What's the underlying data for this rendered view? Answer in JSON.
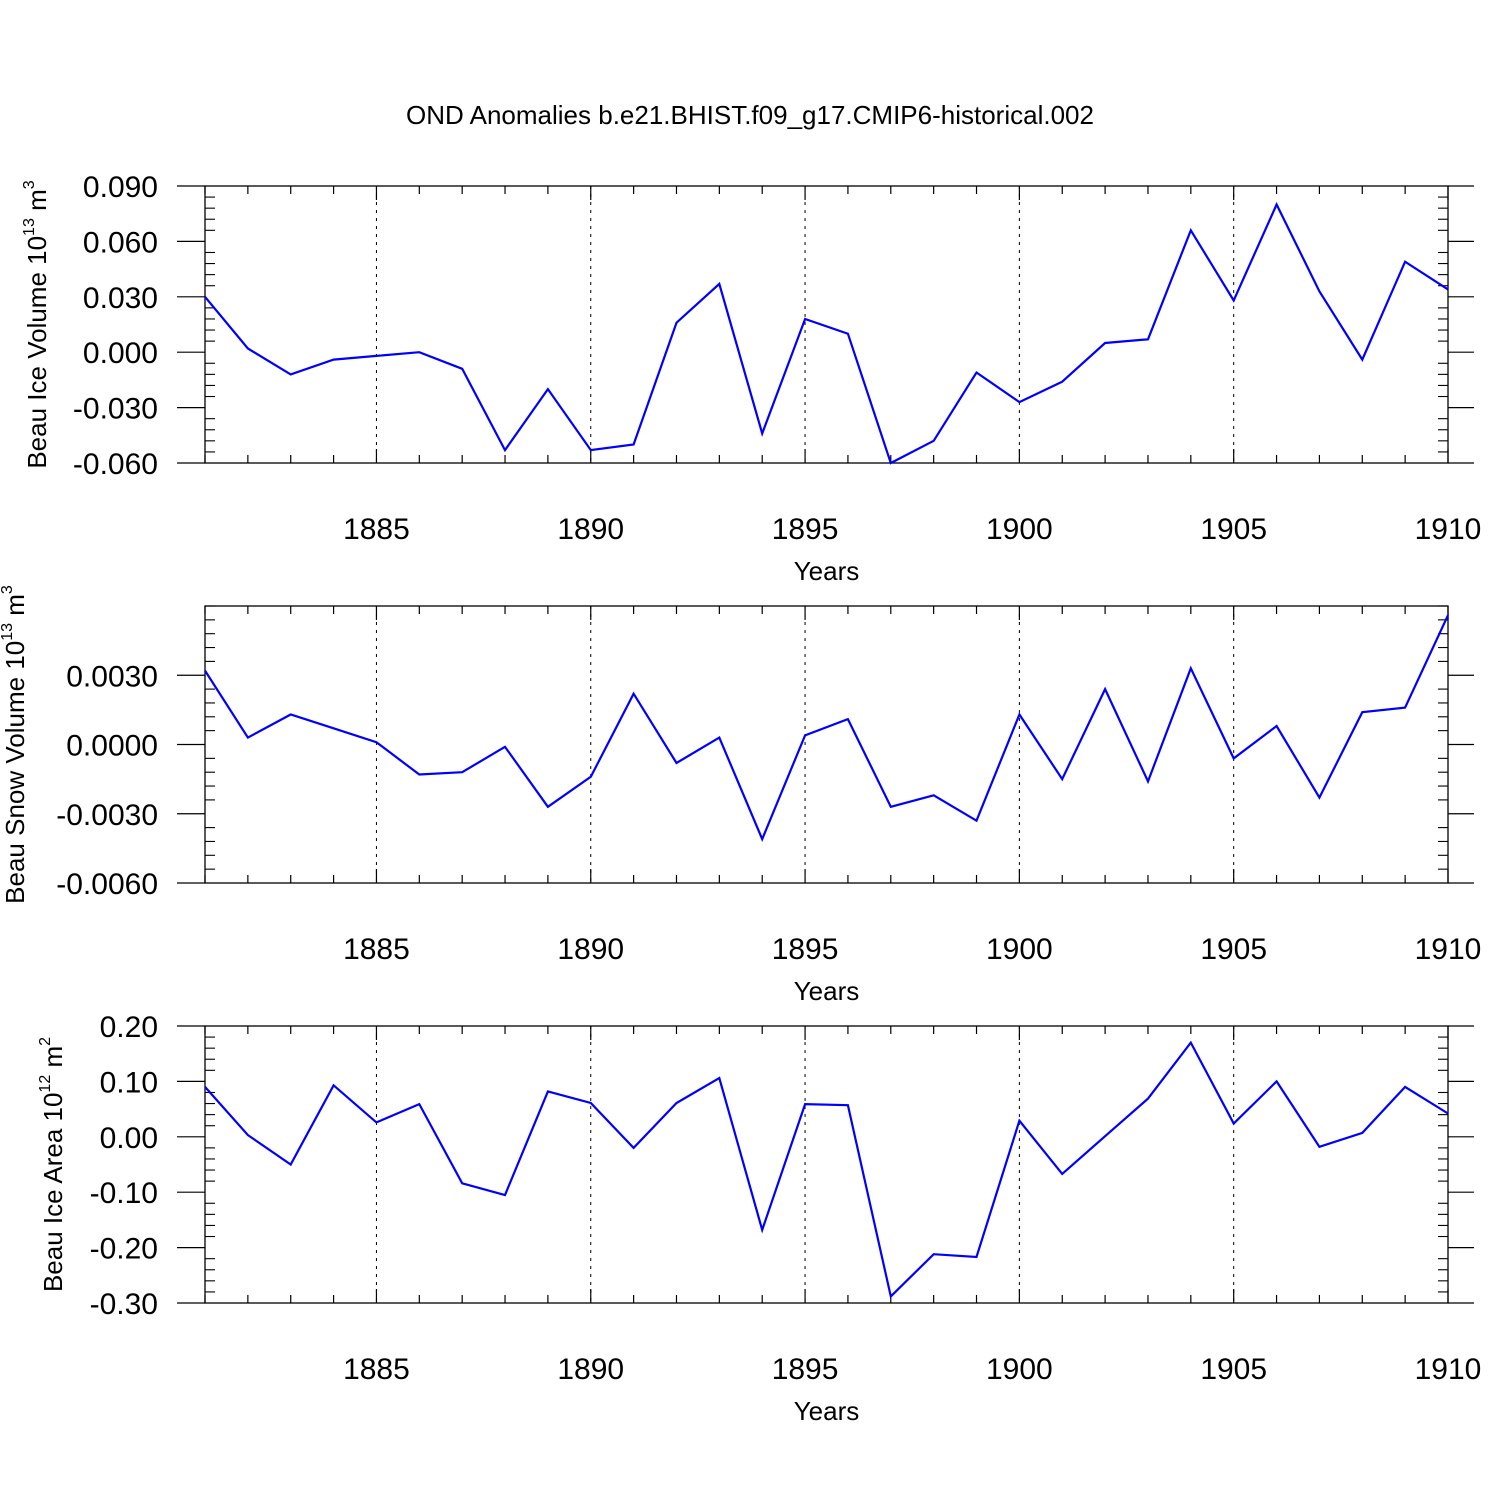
{
  "title": "OND Anomalies b.e21.BHIST.f09_g17.CMIP6-historical.002",
  "colors": {
    "line": "#0000ff",
    "axes": "#000000",
    "grid": "#000000"
  },
  "chart_data": [
    {
      "type": "line",
      "ylabel": {
        "text": "Beau Ice Volume 10",
        "sup": "13",
        "unit": " m",
        "unit_sup": "3"
      },
      "xlabel": "Years",
      "xlim": [
        1881,
        1910
      ],
      "ylim": [
        -0.06,
        0.09
      ],
      "yticks": [
        "0.090",
        "0.060",
        "0.030",
        "0.000",
        "-0.030",
        "-0.060"
      ],
      "ytick_values": [
        0.09,
        0.06,
        0.03,
        0.0,
        -0.03,
        -0.06
      ],
      "xticks": [
        "1885",
        "1890",
        "1895",
        "1900",
        "1905",
        "1910"
      ],
      "xtick_values": [
        1885,
        1890,
        1895,
        1900,
        1905,
        1910
      ],
      "grid": "dashed vertical at major x ticks",
      "series": [
        {
          "x": [
            1881,
            1882,
            1883,
            1884,
            1885,
            1886,
            1887,
            1888,
            1889,
            1890,
            1891,
            1892,
            1893,
            1894,
            1895,
            1896,
            1897,
            1898,
            1899,
            1900,
            1901,
            1902,
            1903,
            1904,
            1905,
            1906,
            1907,
            1908,
            1909,
            1910
          ],
          "values": [
            0.03,
            0.002,
            -0.012,
            -0.004,
            -0.002,
            0.0,
            -0.009,
            -0.053,
            -0.02,
            -0.053,
            -0.05,
            0.016,
            0.037,
            -0.044,
            0.018,
            0.01,
            -0.06,
            -0.048,
            -0.011,
            -0.027,
            -0.016,
            0.005,
            0.007,
            0.066,
            0.028,
            0.08,
            0.033,
            -0.004,
            0.049,
            0.034
          ]
        }
      ]
    },
    {
      "type": "line",
      "ylabel": {
        "text": "Beau Snow Volume 10",
        "sup": "13",
        "unit": " m",
        "unit_sup": "3"
      },
      "xlabel": "Years",
      "xlim": [
        1881,
        1910
      ],
      "ylim": [
        -0.006,
        0.006
      ],
      "yticks": [
        "0.0030",
        "0.0000",
        "-0.0030",
        "-0.0060"
      ],
      "ytick_values": [
        0.003,
        0.0,
        -0.003,
        -0.006
      ],
      "xticks": [
        "1885",
        "1890",
        "1895",
        "1900",
        "1905",
        "1910"
      ],
      "xtick_values": [
        1885,
        1890,
        1895,
        1900,
        1905,
        1910
      ],
      "grid": "dashed vertical at major x ticks",
      "series": [
        {
          "x": [
            1881,
            1882,
            1883,
            1884,
            1885,
            1886,
            1887,
            1888,
            1889,
            1890,
            1891,
            1892,
            1893,
            1894,
            1895,
            1896,
            1897,
            1898,
            1899,
            1900,
            1901,
            1902,
            1903,
            1904,
            1905,
            1906,
            1907,
            1908,
            1909,
            1910
          ],
          "values": [
            0.0032,
            0.0003,
            0.0013,
            0.0007,
            0.0001,
            -0.0013,
            -0.0012,
            -0.0001,
            -0.0027,
            -0.0014,
            0.0022,
            -0.0008,
            0.0003,
            -0.0041,
            0.0004,
            0.0011,
            -0.0027,
            -0.0022,
            -0.0033,
            0.0013,
            -0.0015,
            0.0024,
            -0.0016,
            0.0033,
            -0.0006,
            0.0008,
            -0.0023,
            0.0014,
            0.0016,
            0.0056
          ]
        }
      ]
    },
    {
      "type": "line",
      "ylabel": {
        "text": "Beau Ice Area 10",
        "sup": "12",
        "unit": " m",
        "unit_sup": "2"
      },
      "xlabel": "Years",
      "xlim": [
        1881,
        1910
      ],
      "ylim": [
        -0.3,
        0.2
      ],
      "yticks": [
        "0.20",
        "0.10",
        "0.00",
        "-0.10",
        "-0.20",
        "-0.30"
      ],
      "ytick_values": [
        0.2,
        0.1,
        0.0,
        -0.1,
        -0.2,
        -0.3
      ],
      "xticks": [
        "1885",
        "1890",
        "1895",
        "1900",
        "1905",
        "1910"
      ],
      "xtick_values": [
        1885,
        1890,
        1895,
        1900,
        1905,
        1910
      ],
      "grid": "dashed vertical at major x ticks",
      "series": [
        {
          "x": [
            1881,
            1882,
            1883,
            1884,
            1885,
            1886,
            1887,
            1888,
            1889,
            1890,
            1891,
            1892,
            1893,
            1894,
            1895,
            1896,
            1897,
            1898,
            1899,
            1900,
            1901,
            1902,
            1903,
            1904,
            1905,
            1906,
            1907,
            1908,
            1909,
            1910
          ],
          "values": [
            0.09,
            0.003,
            -0.05,
            0.093,
            0.026,
            0.059,
            -0.084,
            -0.105,
            0.082,
            0.061,
            -0.02,
            0.061,
            0.106,
            -0.168,
            0.059,
            0.057,
            -0.288,
            -0.212,
            -0.217,
            0.029,
            -0.067,
            0.001,
            0.069,
            0.17,
            0.024,
            0.1,
            -0.018,
            0.007,
            0.09,
            0.042
          ]
        }
      ]
    }
  ]
}
